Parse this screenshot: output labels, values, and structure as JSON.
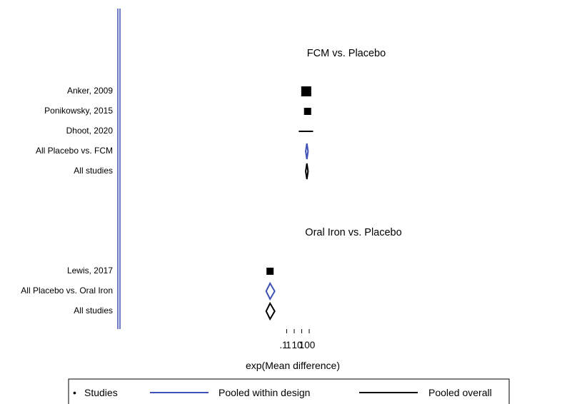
{
  "chart_data": {
    "type": "forest",
    "xlabel": "exp(Mean difference)",
    "x_ticks": [
      ".1",
      "1",
      "10",
      "100"
    ],
    "groups": [
      {
        "title": "FCM  vs.  Placebo",
        "studies": [
          {
            "label": "Anker, 2009",
            "estimate": 40.0,
            "ci": [
              37.0,
              43.0
            ]
          },
          {
            "label": "Ponikowsky, 2015",
            "estimate": 61.0,
            "ci": [
              54.0,
              70.0
            ]
          },
          {
            "label": "Dhoot, 2020",
            "estimate": 48.0,
            "ci": [
              4.0,
              330.0
            ]
          }
        ],
        "pooled_within": {
          "label": "All Placebo  vs.  FCM",
          "estimate": 49.0,
          "ci": [
            34.0,
            70.0
          ]
        },
        "pooled_overall": {
          "label": "All studies",
          "estimate": 49.0,
          "ci": [
            34.0,
            70.0
          ]
        }
      },
      {
        "title": "Oral Iron  vs.  Placebo",
        "studies": [
          {
            "label": "Lewis, 2017",
            "estimate": 0.0006,
            "ci": [
              0.0004,
              0.001
            ]
          }
        ],
        "pooled_within": {
          "label": "All Placebo  vs.  Oral Iron",
          "estimate": 0.0006,
          "ci": [
            0.00018,
            0.0025
          ]
        },
        "pooled_overall": {
          "label": "All studies",
          "estimate": 0.0006,
          "ci": [
            0.00018,
            0.0025
          ]
        }
      }
    ],
    "legend": {
      "placement": "bottom",
      "items": [
        {
          "symbol": "•",
          "label": "Studies"
        },
        {
          "label": "Pooled within design",
          "color": "#3F51B5"
        },
        {
          "label": "Pooled overall",
          "color": "#000000"
        }
      ]
    },
    "colors": {
      "study": "#000000",
      "pooled_within": "#3F51B5",
      "pooled_overall": "#000000",
      "axis": "#3F51B5"
    }
  }
}
